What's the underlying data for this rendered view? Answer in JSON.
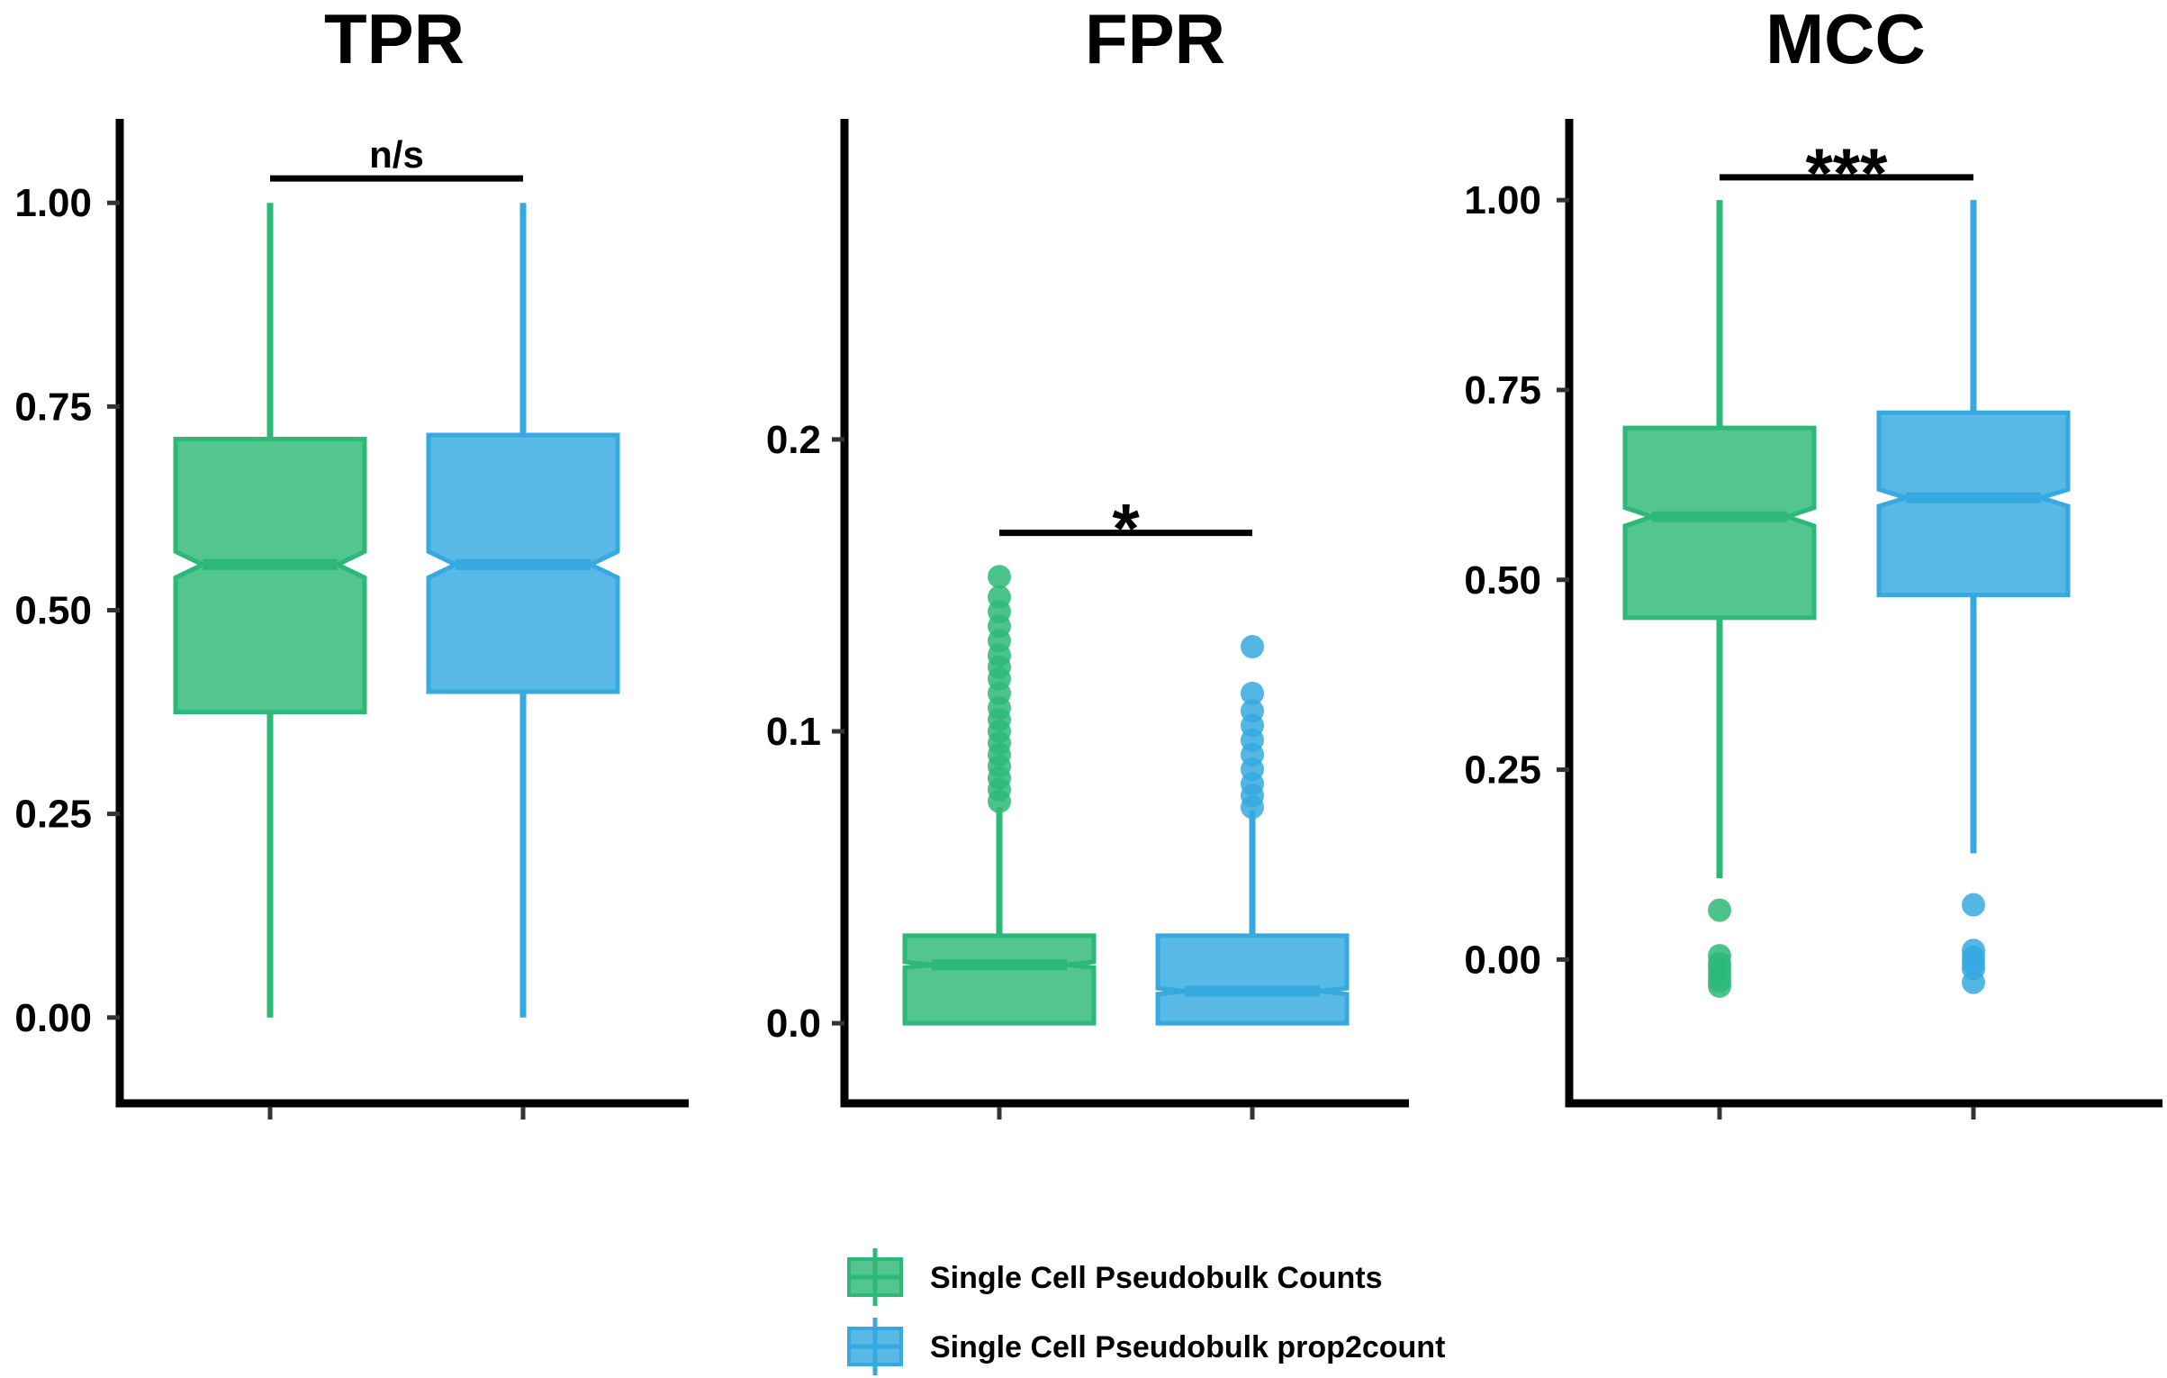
{
  "colors": {
    "series": [
      "#2db877",
      "#35a9e0"
    ]
  },
  "legend": {
    "items": [
      {
        "label": "Single Cell Pseudobulk Counts",
        "color": "#2db877"
      },
      {
        "label": "Single Cell Pseudobulk prop2count",
        "color": "#35a9e0"
      }
    ]
  },
  "chart_data": [
    {
      "type": "boxplot",
      "title": "TPR",
      "ylim": [
        -0.05,
        1.05
      ],
      "yticks": [
        0.0,
        0.25,
        0.5,
        0.75,
        1.0
      ],
      "ytick_labels": [
        "0.00",
        "0.25",
        "0.50",
        "0.75",
        "1.00"
      ],
      "significance": "n/s",
      "sig_y": 1.03,
      "series": [
        {
          "name": "Single Cell Pseudobulk Counts",
          "min": 0.0,
          "q1": 0.375,
          "median": 0.556,
          "q3": 0.71,
          "max": 1.0,
          "notch": [
            0.54,
            0.572
          ],
          "outliers": []
        },
        {
          "name": "Single Cell Pseudobulk prop2count",
          "min": 0.0,
          "q1": 0.4,
          "median": 0.556,
          "q3": 0.715,
          "max": 1.0,
          "notch": [
            0.54,
            0.572
          ],
          "outliers": []
        }
      ]
    },
    {
      "type": "boxplot",
      "title": "FPR",
      "ylim": [
        -0.012,
        0.295
      ],
      "yticks": [
        0.0,
        0.1,
        0.2
      ],
      "ytick_labels": [
        "0.0",
        "0.1",
        "0.2"
      ],
      "significance": "*",
      "sig_y": 0.168,
      "series": [
        {
          "name": "Single Cell Pseudobulk Counts",
          "min": 0.0,
          "q1": 0.0,
          "median": 0.02,
          "q3": 0.03,
          "max": 0.074,
          "notch": [
            0.019,
            0.021
          ],
          "outliers": [
            0.153,
            0.146,
            0.141,
            0.136,
            0.131,
            0.126,
            0.122,
            0.118,
            0.113,
            0.108,
            0.104,
            0.1,
            0.096,
            0.092,
            0.088,
            0.084,
            0.08,
            0.076
          ]
        },
        {
          "name": "Single Cell Pseudobulk prop2count",
          "min": 0.0,
          "q1": 0.0,
          "median": 0.011,
          "q3": 0.03,
          "max": 0.073,
          "notch": [
            0.01,
            0.012
          ],
          "outliers": [
            0.129,
            0.113,
            0.107,
            0.102,
            0.097,
            0.092,
            0.087,
            0.082,
            0.078,
            0.074
          ]
        }
      ]
    },
    {
      "type": "boxplot",
      "title": "MCC",
      "ylim": [
        -0.13,
        1.05
      ],
      "yticks": [
        0.0,
        0.25,
        0.5,
        0.75,
        1.0
      ],
      "ytick_labels": [
        "0.00",
        "0.25",
        "0.50",
        "0.75",
        "1.00"
      ],
      "significance": "***",
      "sig_y": 1.03,
      "series": [
        {
          "name": "Single Cell Pseudobulk Counts",
          "min": 0.107,
          "q1": 0.45,
          "median": 0.583,
          "q3": 0.7,
          "max": 1.0,
          "notch": [
            0.571,
            0.595
          ],
          "outliers": [
            0.065,
            0.005,
            -0.005,
            -0.012,
            -0.02,
            -0.028,
            -0.035
          ]
        },
        {
          "name": "Single Cell Pseudobulk prop2count",
          "min": 0.14,
          "q1": 0.48,
          "median": 0.608,
          "q3": 0.72,
          "max": 1.0,
          "notch": [
            0.597,
            0.619
          ],
          "outliers": [
            0.072,
            0.012,
            0.003,
            -0.005,
            -0.012,
            -0.03
          ]
        }
      ]
    }
  ]
}
